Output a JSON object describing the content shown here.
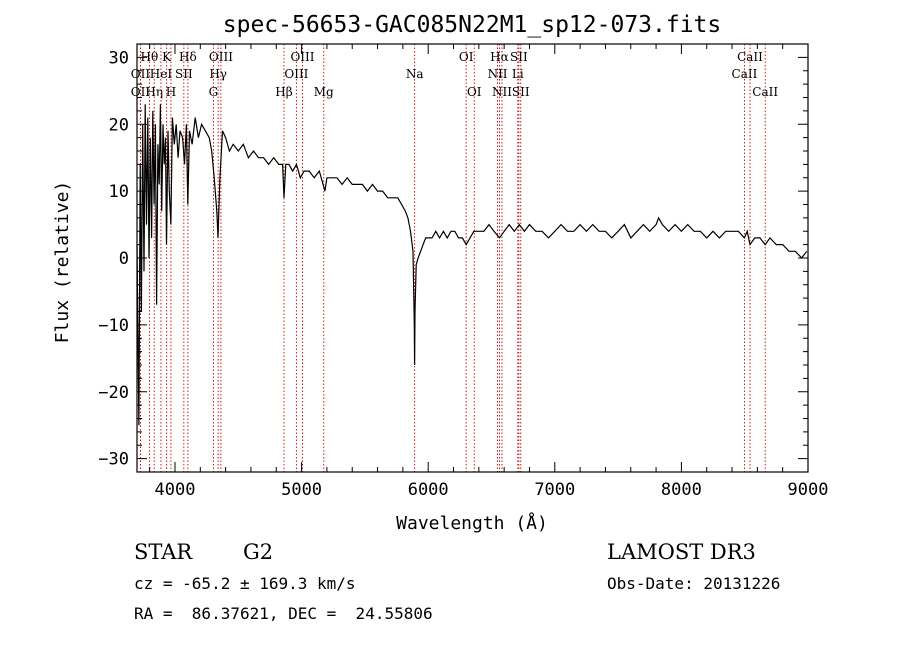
{
  "chart_data": {
    "type": "line",
    "title": "spec-56653-GAC085N22M1_sp12-073.fits",
    "xlabel": "Wavelength (Å)",
    "ylabel": "Flux (relative)",
    "xlim": [
      3700,
      9000
    ],
    "ylim": [
      -32,
      32
    ],
    "x_ticks": [
      4000,
      5000,
      6000,
      7000,
      8000,
      9000
    ],
    "x_tick_labels": [
      "4000",
      "5000",
      "6000",
      "7000",
      "8000",
      "9000"
    ],
    "y_ticks": [
      -30,
      -20,
      -10,
      0,
      10,
      20,
      30
    ],
    "y_tick_labels": [
      "−30",
      "−20",
      "−10",
      "0",
      "10",
      "20",
      "30"
    ],
    "series": [
      {
        "name": "spectrum",
        "points": [
          [
            3700,
            2
          ],
          [
            3715,
            -25
          ],
          [
            3725,
            14
          ],
          [
            3735,
            -8
          ],
          [
            3745,
            20
          ],
          [
            3755,
            -2
          ],
          [
            3765,
            23
          ],
          [
            3775,
            5
          ],
          [
            3785,
            21
          ],
          [
            3795,
            0
          ],
          [
            3805,
            18
          ],
          [
            3815,
            3
          ],
          [
            3825,
            22
          ],
          [
            3835,
            8
          ],
          [
            3845,
            20
          ],
          [
            3855,
            -7
          ],
          [
            3865,
            17
          ],
          [
            3875,
            11
          ],
          [
            3885,
            23
          ],
          [
            3895,
            7
          ],
          [
            3905,
            20
          ],
          [
            3915,
            14
          ],
          [
            3925,
            18
          ],
          [
            3933,
            2
          ],
          [
            3945,
            19
          ],
          [
            3955,
            10
          ],
          [
            3968,
            5
          ],
          [
            3980,
            21
          ],
          [
            3995,
            17
          ],
          [
            4010,
            20
          ],
          [
            4025,
            15
          ],
          [
            4040,
            19
          ],
          [
            4060,
            18
          ],
          [
            4075,
            14
          ],
          [
            4090,
            20
          ],
          [
            4101,
            8
          ],
          [
            4115,
            19
          ],
          [
            4135,
            17
          ],
          [
            4160,
            21
          ],
          [
            4185,
            18
          ],
          [
            4210,
            20
          ],
          [
            4240,
            19
          ],
          [
            4270,
            18
          ],
          [
            4290,
            16
          ],
          [
            4310,
            12
          ],
          [
            4330,
            7
          ],
          [
            4340,
            3
          ],
          [
            4355,
            12
          ],
          [
            4375,
            19
          ],
          [
            4400,
            18
          ],
          [
            4430,
            16
          ],
          [
            4460,
            17
          ],
          [
            4500,
            16
          ],
          [
            4540,
            17
          ],
          [
            4580,
            15
          ],
          [
            4620,
            16
          ],
          [
            4660,
            15
          ],
          [
            4700,
            15
          ],
          [
            4740,
            14
          ],
          [
            4780,
            15
          ],
          [
            4820,
            14
          ],
          [
            4850,
            14
          ],
          [
            4861,
            9
          ],
          [
            4875,
            14
          ],
          [
            4900,
            14
          ],
          [
            4930,
            13
          ],
          [
            4960,
            14
          ],
          [
            4990,
            12
          ],
          [
            5020,
            13
          ],
          [
            5060,
            13
          ],
          [
            5100,
            12
          ],
          [
            5140,
            13
          ],
          [
            5170,
            11
          ],
          [
            5184,
            10
          ],
          [
            5200,
            12
          ],
          [
            5240,
            12
          ],
          [
            5280,
            12
          ],
          [
            5320,
            11
          ],
          [
            5360,
            12
          ],
          [
            5400,
            11
          ],
          [
            5440,
            11
          ],
          [
            5480,
            11
          ],
          [
            5520,
            10
          ],
          [
            5560,
            11
          ],
          [
            5600,
            10
          ],
          [
            5640,
            10
          ],
          [
            5680,
            9
          ],
          [
            5720,
            9
          ],
          [
            5760,
            9
          ],
          [
            5790,
            8
          ],
          [
            5820,
            7
          ],
          [
            5840,
            6
          ],
          [
            5860,
            4
          ],
          [
            5880,
            1
          ],
          [
            5890,
            -10
          ],
          [
            5893,
            -16
          ],
          [
            5896,
            -8
          ],
          [
            5905,
            -1
          ],
          [
            5920,
            0
          ],
          [
            5940,
            1
          ],
          [
            5960,
            2
          ],
          [
            5980,
            3
          ],
          [
            6000,
            3
          ],
          [
            6030,
            3
          ],
          [
            6060,
            4
          ],
          [
            6090,
            3
          ],
          [
            6120,
            4
          ],
          [
            6150,
            3
          ],
          [
            6180,
            4
          ],
          [
            6210,
            4
          ],
          [
            6240,
            3
          ],
          [
            6270,
            3
          ],
          [
            6300,
            2
          ],
          [
            6330,
            3
          ],
          [
            6360,
            4
          ],
          [
            6400,
            4
          ],
          [
            6440,
            4
          ],
          [
            6480,
            5
          ],
          [
            6520,
            4
          ],
          [
            6563,
            3
          ],
          [
            6600,
            4
          ],
          [
            6640,
            5
          ],
          [
            6680,
            4
          ],
          [
            6720,
            5
          ],
          [
            6760,
            4
          ],
          [
            6800,
            5
          ],
          [
            6850,
            4
          ],
          [
            6900,
            4
          ],
          [
            6950,
            3
          ],
          [
            7000,
            4
          ],
          [
            7050,
            5
          ],
          [
            7100,
            4
          ],
          [
            7150,
            4
          ],
          [
            7200,
            5
          ],
          [
            7250,
            4
          ],
          [
            7300,
            5
          ],
          [
            7350,
            4
          ],
          [
            7400,
            4
          ],
          [
            7450,
            3
          ],
          [
            7500,
            4
          ],
          [
            7550,
            5
          ],
          [
            7600,
            3
          ],
          [
            7650,
            4
          ],
          [
            7700,
            5
          ],
          [
            7750,
            4
          ],
          [
            7800,
            5
          ],
          [
            7820,
            6
          ],
          [
            7850,
            5
          ],
          [
            7900,
            4
          ],
          [
            7950,
            5
          ],
          [
            8000,
            4
          ],
          [
            8050,
            5
          ],
          [
            8100,
            4
          ],
          [
            8150,
            4
          ],
          [
            8200,
            3
          ],
          [
            8250,
            4
          ],
          [
            8300,
            3
          ],
          [
            8350,
            4
          ],
          [
            8400,
            4
          ],
          [
            8450,
            4
          ],
          [
            8498,
            3
          ],
          [
            8520,
            4
          ],
          [
            8542,
            2
          ],
          [
            8580,
            3
          ],
          [
            8620,
            3
          ],
          [
            8662,
            2
          ],
          [
            8700,
            3
          ],
          [
            8750,
            2
          ],
          [
            8800,
            2
          ],
          [
            8850,
            1
          ],
          [
            8900,
            1
          ],
          [
            8950,
            0
          ],
          [
            8990,
            1
          ]
        ]
      }
    ],
    "line_markers": [
      {
        "label": "OII",
        "wave": 3727,
        "row": 2
      },
      {
        "label": "OII",
        "wave": 3727,
        "row": 3
      },
      {
        "label": "Hθ",
        "wave": 3798,
        "row": 1
      },
      {
        "label": "Hη",
        "wave": 3836,
        "row": 3
      },
      {
        "label": "HeI",
        "wave": 3889,
        "row": 2
      },
      {
        "label": "K",
        "wave": 3934,
        "row": 1
      },
      {
        "label": "H",
        "wave": 3968,
        "row": 3
      },
      {
        "label": "SII",
        "wave": 4070,
        "row": 2
      },
      {
        "label": "Hδ",
        "wave": 4102,
        "row": 1
      },
      {
        "label": "G",
        "wave": 4304,
        "row": 3
      },
      {
        "label": "Hγ",
        "wave": 4341,
        "row": 2
      },
      {
        "label": "OIII",
        "wave": 4363,
        "row": 1
      },
      {
        "label": "Hβ",
        "wave": 4861,
        "row": 3
      },
      {
        "label": "OIII",
        "wave": 4959,
        "row": 2
      },
      {
        "label": "OIII",
        "wave": 5007,
        "row": 1
      },
      {
        "label": "Mg",
        "wave": 5175,
        "row": 3
      },
      {
        "label": "Na",
        "wave": 5893,
        "row": 2
      },
      {
        "label": "OI",
        "wave": 6300,
        "row": 1
      },
      {
        "label": "OI",
        "wave": 6364,
        "row": 3
      },
      {
        "label": "NII",
        "wave": 6548,
        "row": 2
      },
      {
        "label": "NII",
        "wave": 6583,
        "row": 3
      },
      {
        "label": "Hα",
        "wave": 6563,
        "row": 1
      },
      {
        "label": "SII",
        "wave": 6716,
        "row": 1
      },
      {
        "label": "SII",
        "wave": 6731,
        "row": 3
      },
      {
        "label": "Li",
        "wave": 6708,
        "row": 2
      },
      {
        "label": "CaII",
        "wave": 8498,
        "row": 2
      },
      {
        "label": "CaII",
        "wave": 8542,
        "row": 1
      },
      {
        "label": "CaII",
        "wave": 8662,
        "row": 3
      }
    ]
  },
  "info": {
    "object_class": "STAR",
    "subclass": "G2",
    "survey": "LAMOST DR3",
    "velocity": "cz = -65.2 ± 169.3 km/s",
    "obs_date": "Obs-Date: 20131226",
    "coords": "RA =  86.37621, DEC =  24.55806"
  },
  "colors": {
    "line": "#000000",
    "marker": "#cc0000",
    "background": "#ffffff"
  }
}
